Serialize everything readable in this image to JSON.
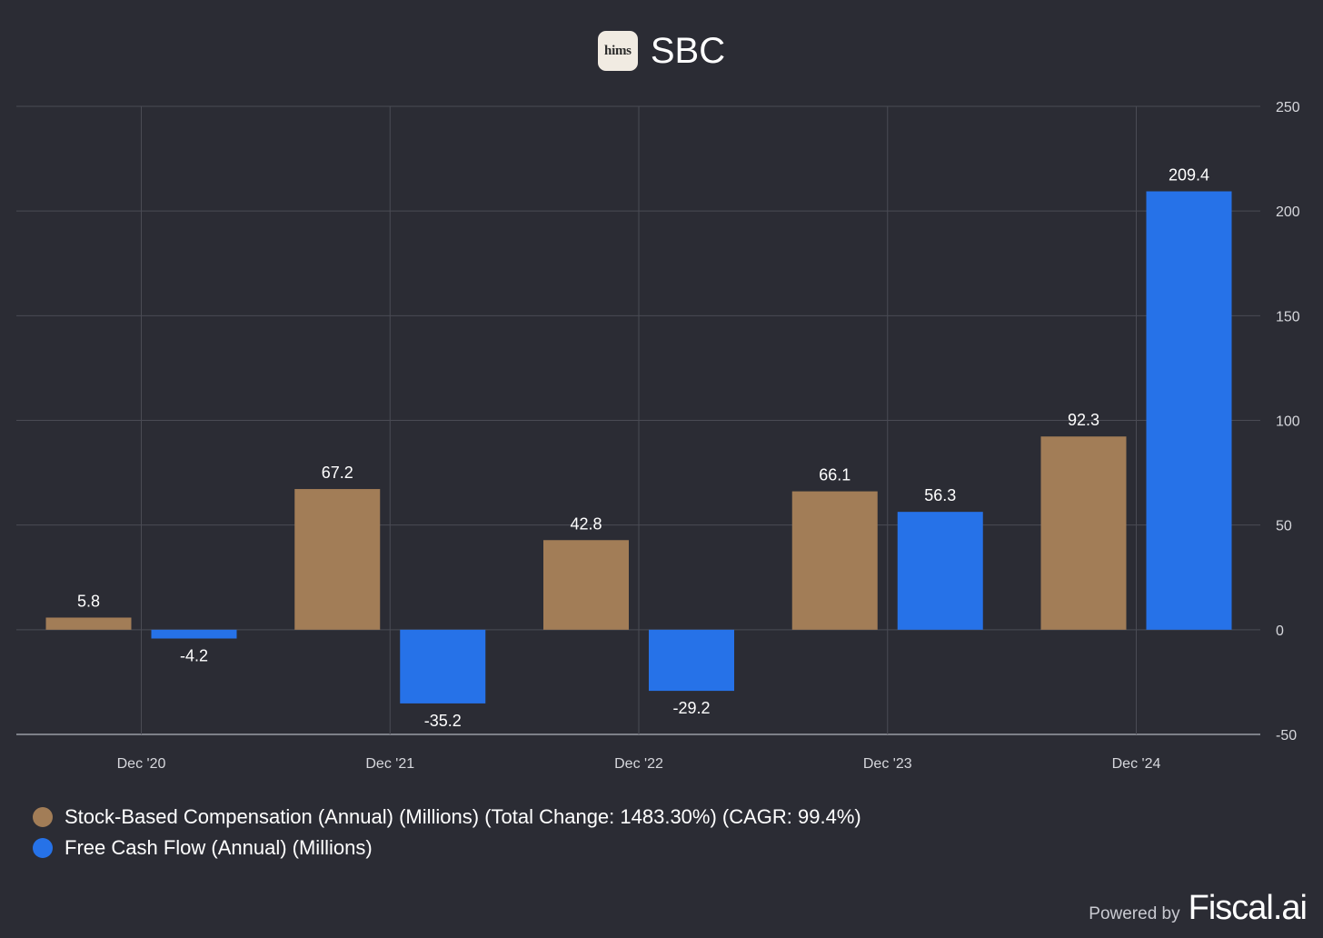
{
  "header": {
    "logo_text": "hims",
    "title": "SBC"
  },
  "chart_data": {
    "type": "bar",
    "categories": [
      "Dec '20",
      "Dec '21",
      "Dec '22",
      "Dec '23",
      "Dec '24"
    ],
    "series": [
      {
        "name": "Stock-Based Compensation (Annual) (Millions) (Total Change: 1483.30%) (CAGR: 99.4%)",
        "color": "#a27d57",
        "values": [
          5.8,
          67.2,
          42.8,
          66.1,
          92.3
        ],
        "labels": [
          "5.8",
          "67.2",
          "42.8",
          "66.1",
          "92.3"
        ]
      },
      {
        "name": "Free Cash Flow (Annual) (Millions)",
        "color": "#2672e8",
        "values": [
          -4.2,
          -35.2,
          -29.2,
          56.3,
          209.4
        ],
        "labels": [
          "-4.2",
          "-35.2",
          "-29.2",
          "56.3",
          "209.4"
        ]
      }
    ],
    "ylim": [
      -50,
      250
    ],
    "yticks": [
      250,
      200,
      150,
      100,
      50,
      0,
      -50
    ],
    "ytick_labels": [
      "250",
      "200",
      "150",
      "100",
      "50",
      "0",
      "-50"
    ],
    "y_axis_side": "right",
    "grid": true,
    "legend_position": "bottom-left"
  },
  "footer": {
    "powered_by": "Powered by",
    "brand": "Fiscal.ai"
  }
}
